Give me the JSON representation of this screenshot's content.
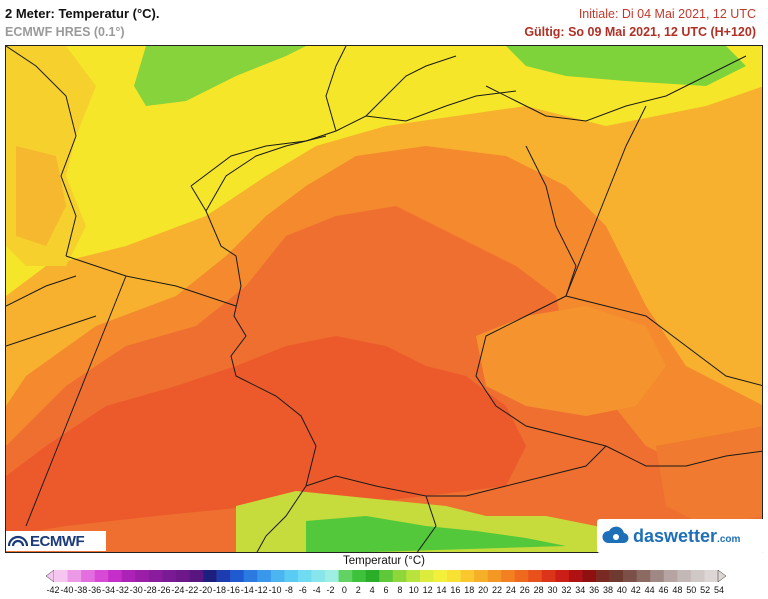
{
  "header": {
    "title": "2 Meter: Temperatur (°C).",
    "model": "ECMWF HRES (0.1°)",
    "init": "Initiale: Di 04 Mai 2021, 12 UTC",
    "valid": "Gültig: So 09 Mai 2021, 12 UTC (H+120)"
  },
  "logos": {
    "left": "ECMWF",
    "right_main": "daswetter",
    "right_suffix": ".com"
  },
  "legend": {
    "title": "Temperatur (°C)",
    "labels": [
      "-42",
      "-40",
      "-38",
      "-36",
      "-34",
      "-32",
      "-30",
      "-28",
      "-26",
      "-24",
      "-22",
      "-20",
      "-18",
      "-16",
      "-14",
      "-12",
      "-10",
      "-8",
      "-6",
      "-4",
      "-2",
      "0",
      "2",
      "4",
      "6",
      "8",
      "10",
      "12",
      "14",
      "16",
      "18",
      "20",
      "22",
      "24",
      "26",
      "28",
      "30",
      "32",
      "34",
      "36",
      "38",
      "40",
      "42",
      "44",
      "46",
      "48",
      "50",
      "52",
      "54"
    ],
    "colors": [
      "#f5c6f0",
      "#ec9ae6",
      "#e46ee0",
      "#d84ad6",
      "#c52ec8",
      "#ad22b6",
      "#9a1ea8",
      "#8a1c9e",
      "#7a1a94",
      "#6c1888",
      "#5a1680",
      "#1d1f7e",
      "#1d3cb0",
      "#1f5ad0",
      "#2a7ae2",
      "#3a98ec",
      "#4cb4f0",
      "#5ccbf4",
      "#70dcf2",
      "#86e6ec",
      "#9eeee4",
      "#62d262",
      "#3ec23c",
      "#2aae2a",
      "#5ec83a",
      "#8ed63a",
      "#b8e23e",
      "#dcec3c",
      "#f2f03a",
      "#f8e034",
      "#f8c82e",
      "#f6b028",
      "#f49824",
      "#f28020",
      "#ee681e",
      "#e8501c",
      "#dc3418",
      "#cc1e16",
      "#b01214",
      "#8e1010",
      "#7a2a22",
      "#6e3a30",
      "#7a5048",
      "#8c6a64",
      "#a08884",
      "#b6a4a2",
      "#c4b8b6",
      "#d0c8c6",
      "#dcd6d4"
    ]
  },
  "map": {
    "land_colors": [
      "#f7c628",
      "#f5a531",
      "#f5862e",
      "#f27130",
      "#ee5c2c",
      "#e94a2a",
      "#a8dc3c",
      "#52c83a"
    ],
    "sea_color": "#f3df26"
  }
}
